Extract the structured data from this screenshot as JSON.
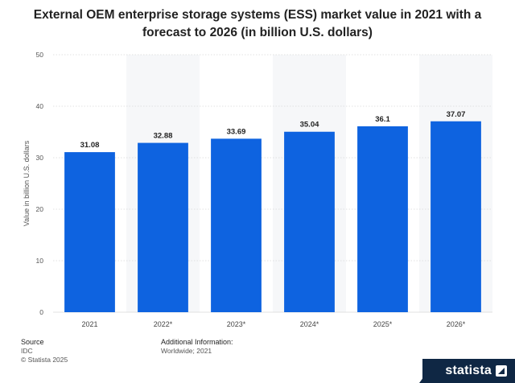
{
  "title": "External OEM enterprise storage systems (ESS) market value in 2021 with a forecast to 2026 (in billion U.S. dollars)",
  "chart_data": {
    "type": "bar",
    "categories": [
      "2021",
      "2022*",
      "2023*",
      "2024*",
      "2025*",
      "2026*"
    ],
    "values": [
      31.08,
      32.88,
      33.69,
      35.04,
      36.1,
      37.07
    ],
    "value_labels": [
      "31.08",
      "32.88",
      "33.69",
      "35.04",
      "36.1",
      "37.07"
    ],
    "ylabel": "Value in billion U.S. dollars",
    "xlabel": "",
    "ylim": [
      0,
      50
    ],
    "yticks": [
      0,
      10,
      20,
      30,
      40,
      50
    ],
    "grid": true,
    "bar_color": "#0e63e0",
    "alt_band_color": "#f6f7f9"
  },
  "footer": {
    "source_heading": "Source",
    "source_name": "IDC",
    "copyright": "© Statista 2025",
    "info_heading": "Additional Information:",
    "info_text": "Worldwide; 2021"
  },
  "brand": {
    "name": "statista",
    "icon": "statista-logo-icon"
  }
}
